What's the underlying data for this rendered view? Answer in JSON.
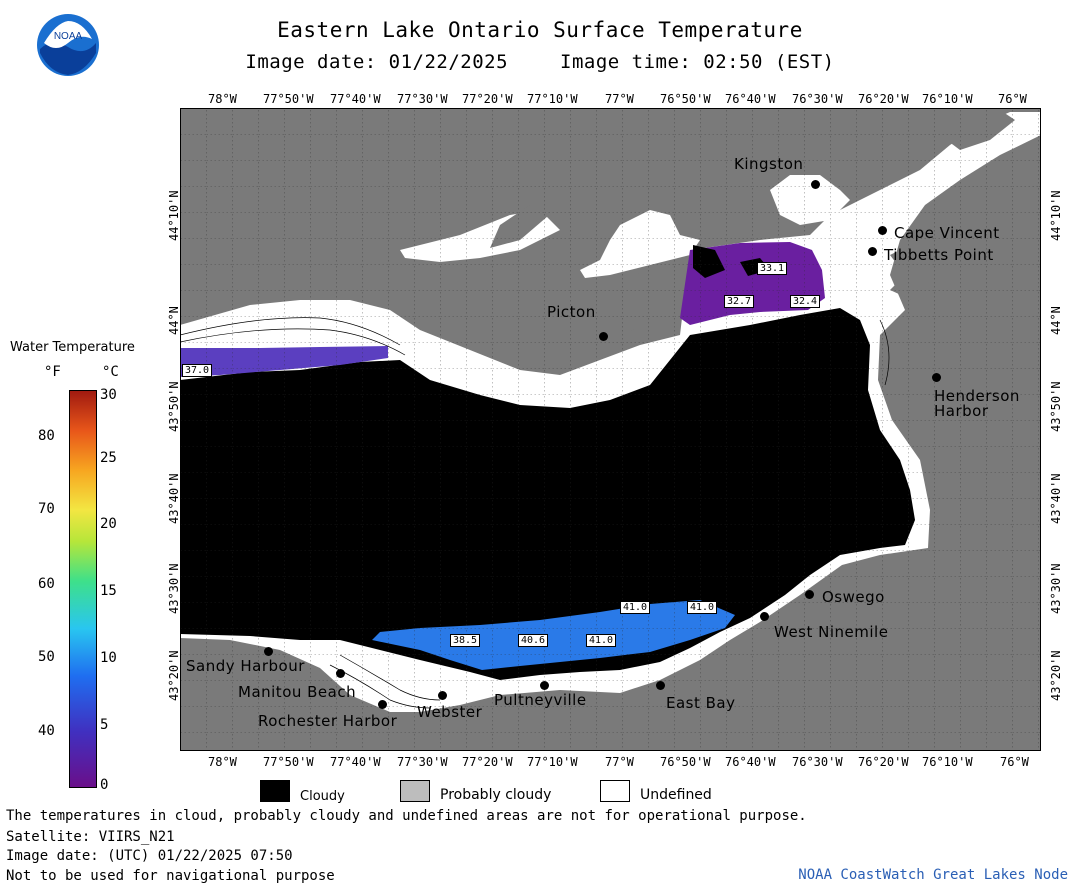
{
  "header": {
    "title": "Eastern Lake Ontario Surface Temperature",
    "image_date": "Image date: 01/22/2025",
    "image_time": "Image time: 02:50 (EST)"
  },
  "logo": {
    "text": "NOAA",
    "icon": "noaa-logo"
  },
  "map": {
    "lon_labels": [
      "78°W",
      "77°50'W",
      "77°40'W",
      "77°30'W",
      "77°20'W",
      "77°10'W",
      "77°W",
      "76°50'W",
      "76°40'W",
      "76°30'W",
      "76°20'W",
      "76°10'W",
      "76°W"
    ],
    "lat_labels": [
      "44°10'N",
      "44°N",
      "43°50'N",
      "43°40'N",
      "43°30'N",
      "43°20'N"
    ],
    "places": {
      "kingston": "Kingston",
      "cape_vincent": "Cape Vincent",
      "tibbetts_point": "Tibbetts Point",
      "picton": "Picton",
      "henderson_harbor_1": "Henderson",
      "henderson_harbor_2": "Harbor",
      "oswego": "Oswego",
      "west_ninemile": "West Ninemile",
      "sandy_harbour": "Sandy Harbour",
      "manitou_beach": "Manitou Beach",
      "rochester_harbor": "Rochester Harbor",
      "webster": "Webster",
      "pultneyville": "Pultneyville",
      "east_bay": "East Bay"
    },
    "temperature_labels": {
      "t1": "37.0",
      "t2": "33.1",
      "t3": "32.7",
      "t4": "32.4",
      "t5": "41.0",
      "t6": "41.0",
      "t7": "38.5",
      "t8": "40.6",
      "t9": "41.0"
    },
    "colors": {
      "land": "#7a7a7a",
      "cloudy": "#000000",
      "undefined": "#ffffff",
      "purple": "#6a1fa0",
      "violet": "#5b3fc0",
      "blue": "#2a7ae8"
    }
  },
  "colorbar": {
    "title": "Water Temperature",
    "unit_f": "°F",
    "unit_c": "°C",
    "f_ticks": [
      "80",
      "70",
      "60",
      "50",
      "40"
    ],
    "c_ticks": [
      "30",
      "25",
      "20",
      "15",
      "10",
      "5",
      "0"
    ]
  },
  "legend": {
    "cloudy": "Cloudy",
    "probably_cloudy": "Probably cloudy",
    "undefined": "Undefined",
    "colors": {
      "cloudy": "#000000",
      "probably_cloudy": "#bdbdbd",
      "undefined": "#ffffff"
    }
  },
  "footer": {
    "line1": "The temperatures in cloud, probably cloudy and undefined areas are not for operational purpose.",
    "line2": "Satellite: VIIRS_N21",
    "line3": "Image date: (UTC) 01/22/2025  07:50",
    "line4": "Not to be used for navigational purpose",
    "credit": "NOAA CoastWatch Great Lakes Node"
  }
}
